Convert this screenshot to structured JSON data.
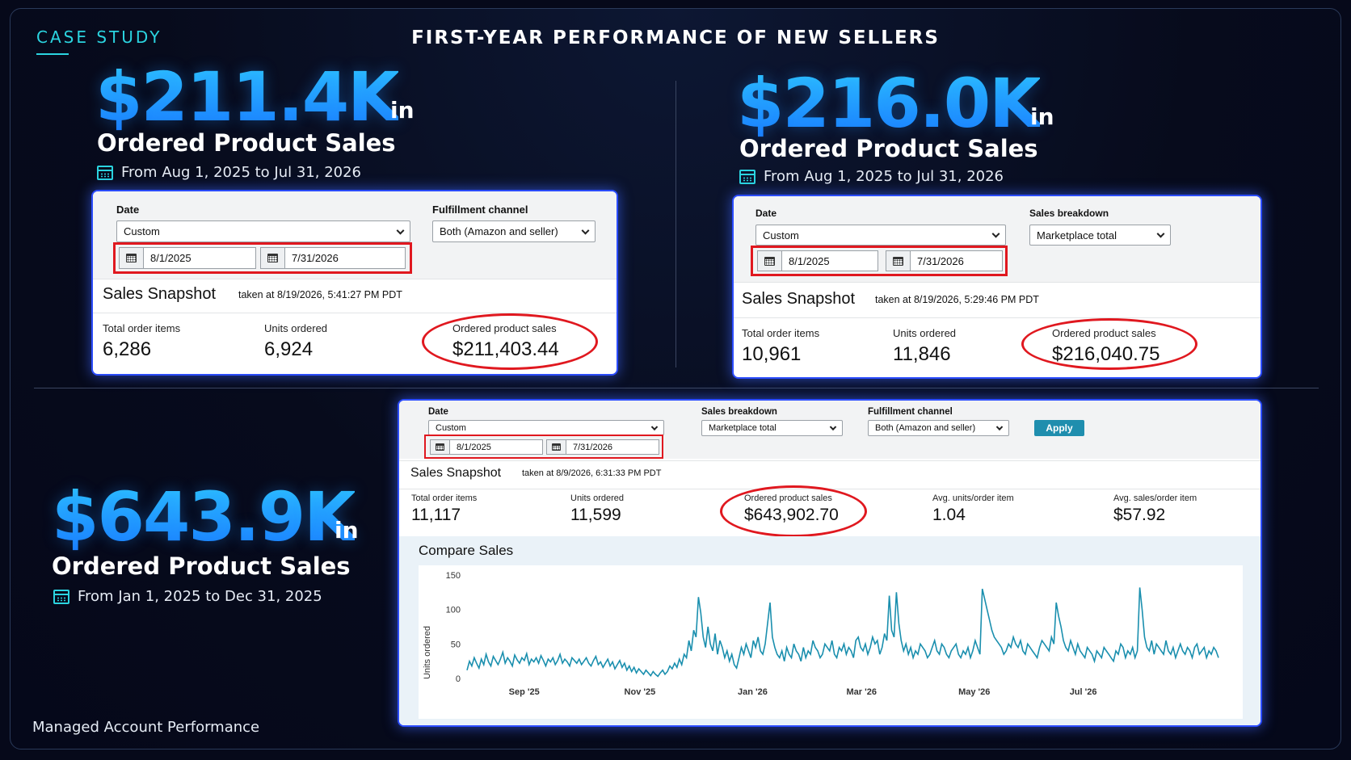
{
  "header": {
    "case_study": "CASE STUDY",
    "title": "FIRST-YEAR PERFORMANCE OF NEW SELLERS"
  },
  "footer": "Managed Account Performance",
  "colors": {
    "accent": "#2bd4e0",
    "big_number": "#1c9bff",
    "highlight": "#e0181f",
    "apply": "#1f8eae",
    "line": "#1a8fae"
  },
  "study1": {
    "amount": "$211.4K",
    "in": "in",
    "subtitle": "Ordered Product Sales",
    "range": "From Aug 1, 2025 to Jul 31, 2026",
    "panel": {
      "date_label": "Date",
      "date_select": "Custom",
      "channel_label": "Fulfillment channel",
      "channel_select": "Both (Amazon and seller)",
      "start": "8/1/2025",
      "end": "7/31/2026",
      "snapshot_title": "Sales Snapshot",
      "taken": "taken at 8/19/2026, 5:41:27 PM PDT",
      "metrics": [
        {
          "label": "Total order items",
          "value": "6,286"
        },
        {
          "label": "Units ordered",
          "value": "6,924"
        },
        {
          "label": "Ordered product sales",
          "value": "$211,403.44"
        }
      ]
    }
  },
  "study2": {
    "amount": "$216.0K",
    "in": "in",
    "subtitle": "Ordered Product Sales",
    "range": "From Aug 1, 2025 to Jul 31, 2026",
    "panel": {
      "date_label": "Date",
      "date_select": "Custom",
      "breakdown_label": "Sales breakdown",
      "breakdown_select": "Marketplace total",
      "start": "8/1/2025",
      "end": "7/31/2026",
      "snapshot_title": "Sales Snapshot",
      "taken": "taken at 8/19/2026, 5:29:46 PM PDT",
      "metrics": [
        {
          "label": "Total order items",
          "value": "10,961"
        },
        {
          "label": "Units ordered",
          "value": "11,846"
        },
        {
          "label": "Ordered product sales",
          "value": "$216,040.75"
        }
      ]
    }
  },
  "study3": {
    "amount": "$643.9K",
    "in": "in",
    "subtitle": "Ordered Product Sales",
    "range": "From Jan 1, 2025 to Dec 31, 2025",
    "panel": {
      "date_label": "Date",
      "date_select": "Custom",
      "breakdown_label": "Sales breakdown",
      "breakdown_select": "Marketplace total",
      "channel_label": "Fulfillment channel",
      "channel_select": "Both (Amazon and seller)",
      "apply": "Apply",
      "start": "8/1/2025",
      "end": "7/31/2026",
      "snapshot_title": "Sales Snapshot",
      "taken": "taken at 8/9/2026, 6:31:33 PM PDT",
      "metrics": [
        {
          "label": "Total order items",
          "value": "11,117"
        },
        {
          "label": "Units ordered",
          "value": "11,599"
        },
        {
          "label": "Ordered product sales",
          "value": "$643,902.70"
        },
        {
          "label": "Avg. units/order item",
          "value": "1.04"
        },
        {
          "label": "Avg. sales/order item",
          "value": "$57.92"
        }
      ],
      "compare_title": "Compare Sales"
    }
  },
  "chart_data": {
    "type": "line",
    "title": "Compare Sales",
    "xlabel": "",
    "ylabel": "Units ordered",
    "ylim": [
      0,
      150
    ],
    "yticks": [
      0,
      50,
      100,
      150
    ],
    "xticks": [
      "Sep '25",
      "Nov '25",
      "Jan '26",
      "Mar '26",
      "May '26",
      "Jul '26"
    ],
    "grid": false,
    "series": [
      {
        "name": "",
        "values": [
          12,
          25,
          18,
          30,
          22,
          15,
          28,
          20,
          35,
          24,
          18,
          32,
          26,
          20,
          28,
          38,
          22,
          30,
          25,
          18,
          34,
          27,
          22,
          30,
          26,
          36,
          20,
          28,
          24,
          30,
          22,
          33,
          26,
          18,
          28,
          24,
          30,
          20,
          26,
          35,
          22,
          28,
          24,
          18,
          30,
          26,
          22,
          28,
          20,
          25,
          30,
          22,
          18,
          26,
          32,
          20,
          24,
          16,
          22,
          28,
          18,
          24,
          14,
          20,
          26,
          16,
          22,
          12,
          18,
          10,
          16,
          8,
          14,
          10,
          6,
          12,
          8,
          4,
          10,
          6,
          3,
          8,
          12,
          6,
          10,
          18,
          14,
          22,
          16,
          28,
          20,
          35,
          30,
          55,
          40,
          70,
          60,
          118,
          95,
          60,
          45,
          75,
          50,
          40,
          65,
          35,
          55,
          45,
          30,
          40,
          25,
          35,
          20,
          15,
          30,
          45,
          35,
          50,
          40,
          30,
          55,
          45,
          60,
          40,
          35,
          50,
          80,
          110,
          60,
          45,
          35,
          30,
          40,
          25,
          45,
          35,
          30,
          50,
          40,
          35,
          25,
          45,
          30,
          40,
          35,
          55,
          45,
          40,
          30,
          35,
          50,
          45,
          40,
          55,
          35,
          30,
          45,
          40,
          50,
          35,
          45,
          40,
          30,
          55,
          60,
          45,
          40,
          50,
          35,
          45,
          60,
          50,
          55,
          35,
          45,
          65,
          55,
          120,
          70,
          60,
          125,
          80,
          55,
          40,
          50,
          35,
          45,
          30,
          40,
          35,
          50,
          45,
          40,
          30,
          35,
          45,
          55,
          40,
          35,
          50,
          45,
          35,
          30,
          40,
          45,
          50,
          35,
          30,
          40,
          35,
          45,
          30,
          40,
          55,
          45,
          35,
          130,
          115,
          100,
          85,
          70,
          60,
          55,
          50,
          45,
          35,
          40,
          50,
          45,
          60,
          50,
          45,
          55,
          40,
          35,
          50,
          45,
          40,
          35,
          30,
          45,
          55,
          50,
          45,
          40,
          60,
          50,
          110,
          90,
          75,
          55,
          45,
          40,
          55,
          45,
          35,
          50,
          40,
          35,
          30,
          45,
          40,
          35,
          25,
          40,
          35,
          30,
          45,
          40,
          35,
          30,
          25,
          40,
          35,
          50,
          45,
          30,
          40,
          35,
          45,
          30,
          40,
          132,
          100,
          60,
          45,
          40,
          55,
          35,
          50,
          45,
          40,
          35,
          55,
          40,
          35,
          45,
          30,
          40,
          50,
          40,
          35,
          45,
          40,
          30,
          45,
          50,
          35,
          40,
          45,
          30,
          40,
          35,
          45,
          40,
          30
        ]
      }
    ]
  }
}
